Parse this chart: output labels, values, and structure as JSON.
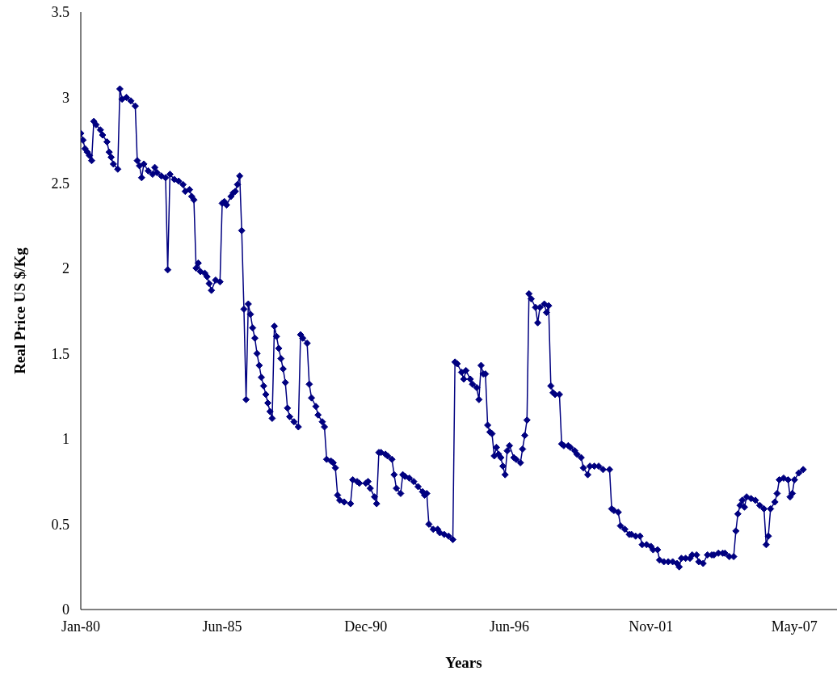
{
  "chart_data": {
    "type": "line",
    "xlabel": "Years",
    "ylabel": "Real Price US $/Kg",
    "grid": false,
    "legend": false,
    "marker": "diamond",
    "line_style": "solid",
    "xlim": [
      "1980-01",
      "2009-05"
    ],
    "xticks": [
      {
        "value": "1980-01",
        "label": "Jan-80"
      },
      {
        "value": "1985-06",
        "label": "Jun-85"
      },
      {
        "value": "1990-12",
        "label": "Dec-90"
      },
      {
        "value": "1996-06",
        "label": "Jun-96"
      },
      {
        "value": "2001-11",
        "label": "Nov-01"
      },
      {
        "value": "2007-05",
        "label": "May-07"
      }
    ],
    "ylim": [
      0,
      3.5
    ],
    "yticks": [
      0,
      0.5,
      1,
      1.5,
      2,
      2.5,
      3,
      3.5
    ],
    "x": [
      "1980-01",
      "1980-02",
      "1980-03",
      "1980-04",
      "1980-05",
      "1980-06",
      "1980-07",
      "1980-08",
      "1980-10",
      "1980-11",
      "1981-01",
      "1981-02",
      "1981-03",
      "1981-04",
      "1981-06",
      "1981-07",
      "1981-08",
      "1981-10",
      "1981-12",
      "1982-02",
      "1982-03",
      "1982-04",
      "1982-05",
      "1982-06",
      "1982-08",
      "1982-10",
      "1982-11",
      "1982-12",
      "1983-02",
      "1983-04",
      "1983-05",
      "1983-06",
      "1983-08",
      "1983-10",
      "1983-12",
      "1984-01",
      "1984-03",
      "1984-04",
      "1984-05",
      "1984-06",
      "1984-07",
      "1984-08",
      "1984-10",
      "1984-11",
      "1984-12",
      "1985-01",
      "1985-03",
      "1985-05",
      "1985-06",
      "1985-07",
      "1985-08",
      "1985-10",
      "1985-11",
      "1985-12",
      "1986-01",
      "1986-02",
      "1986-03",
      "1986-04",
      "1986-05",
      "1986-06",
      "1986-07",
      "1986-08",
      "1986-09",
      "1986-10",
      "1986-11",
      "1986-12",
      "1987-01",
      "1987-02",
      "1987-03",
      "1987-04",
      "1987-05",
      "1987-06",
      "1987-07",
      "1987-08",
      "1987-09",
      "1987-10",
      "1987-11",
      "1987-12",
      "1988-01",
      "1988-03",
      "1988-05",
      "1988-06",
      "1988-07",
      "1988-09",
      "1988-10",
      "1988-11",
      "1989-01",
      "1989-02",
      "1989-04",
      "1989-05",
      "1989-06",
      "1989-08",
      "1989-09",
      "1989-10",
      "1989-11",
      "1989-12",
      "1990-02",
      "1990-05",
      "1990-06",
      "1990-08",
      "1990-09",
      "1990-12",
      "1991-01",
      "1991-02",
      "1991-04",
      "1991-05",
      "1991-06",
      "1991-07",
      "1991-09",
      "1991-10",
      "1991-12",
      "1992-01",
      "1992-02",
      "1992-04",
      "1992-05",
      "1992-06",
      "1992-08",
      "1992-10",
      "1992-12",
      "1993-02",
      "1993-03",
      "1993-04",
      "1993-05",
      "1993-07",
      "1993-09",
      "1993-10",
      "1993-12",
      "1994-02",
      "1994-04",
      "1994-05",
      "1994-06",
      "1994-08",
      "1994-09",
      "1994-10",
      "1994-12",
      "1995-01",
      "1995-03",
      "1995-04",
      "1995-05",
      "1995-06",
      "1995-07",
      "1995-08",
      "1995-09",
      "1995-10",
      "1995-11",
      "1995-12",
      "1996-01",
      "1996-02",
      "1996-03",
      "1996-04",
      "1996-05",
      "1996-06",
      "1996-08",
      "1996-09",
      "1996-11",
      "1996-12",
      "1997-01",
      "1997-02",
      "1997-03",
      "1997-04",
      "1997-06",
      "1997-07",
      "1997-08",
      "1997-10",
      "1997-11",
      "1997-12",
      "1998-01",
      "1998-02",
      "1998-03",
      "1998-05",
      "1998-06",
      "1998-07",
      "1998-09",
      "1998-10",
      "1998-12",
      "1999-01",
      "1999-03",
      "1999-04",
      "1999-06",
      "1999-07",
      "1999-09",
      "1999-11",
      "2000-01",
      "2000-04",
      "2000-05",
      "2000-06",
      "2000-08",
      "2000-09",
      "2000-11",
      "2001-01",
      "2001-02",
      "2001-04",
      "2001-06",
      "2001-07",
      "2001-09",
      "2001-11",
      "2001-12",
      "2002-02",
      "2002-03",
      "2002-05",
      "2002-07",
      "2002-09",
      "2002-11",
      "2002-12",
      "2003-01",
      "2003-03",
      "2003-05",
      "2003-06",
      "2003-08",
      "2003-09",
      "2003-11",
      "2004-01",
      "2004-03",
      "2004-04",
      "2004-06",
      "2004-08",
      "2004-09",
      "2004-11",
      "2005-01",
      "2005-02",
      "2005-03",
      "2005-04",
      "2005-05",
      "2005-06",
      "2005-07",
      "2005-09",
      "2005-11",
      "2006-01",
      "2006-03",
      "2006-04",
      "2006-05",
      "2006-06",
      "2006-08",
      "2006-09",
      "2006-10",
      "2006-12",
      "2007-02",
      "2007-03",
      "2007-04",
      "2007-05",
      "2007-07",
      "2007-09"
    ],
    "series": [
      {
        "color": "#000080",
        "values": [
          2.79,
          2.75,
          2.7,
          2.68,
          2.66,
          2.63,
          2.86,
          2.84,
          2.81,
          2.78,
          2.74,
          2.68,
          2.65,
          2.61,
          2.58,
          3.05,
          2.99,
          3.0,
          2.98,
          2.95,
          2.63,
          2.6,
          2.53,
          2.61,
          2.57,
          2.55,
          2.59,
          2.56,
          2.54,
          2.53,
          1.99,
          2.55,
          2.52,
          2.51,
          2.49,
          2.45,
          2.46,
          2.42,
          2.4,
          2.0,
          2.03,
          1.98,
          1.97,
          1.95,
          1.91,
          1.87,
          1.93,
          1.92,
          2.38,
          2.39,
          2.37,
          2.42,
          2.44,
          2.45,
          2.49,
          2.54,
          2.22,
          1.76,
          1.23,
          1.79,
          1.73,
          1.65,
          1.59,
          1.5,
          1.43,
          1.36,
          1.31,
          1.26,
          1.21,
          1.16,
          1.12,
          1.66,
          1.6,
          1.53,
          1.47,
          1.41,
          1.33,
          1.18,
          1.13,
          1.1,
          1.07,
          1.61,
          1.59,
          1.56,
          1.32,
          1.24,
          1.19,
          1.14,
          1.1,
          1.07,
          0.88,
          0.87,
          0.86,
          0.83,
          0.67,
          0.64,
          0.63,
          0.62,
          0.76,
          0.75,
          0.74,
          0.74,
          0.75,
          0.71,
          0.66,
          0.62,
          0.92,
          0.92,
          0.91,
          0.9,
          0.88,
          0.79,
          0.71,
          0.68,
          0.79,
          0.78,
          0.77,
          0.75,
          0.72,
          0.69,
          0.67,
          0.68,
          0.5,
          0.47,
          0.47,
          0.45,
          0.44,
          0.43,
          0.41,
          1.45,
          1.44,
          1.39,
          1.35,
          1.4,
          1.35,
          1.32,
          1.3,
          1.23,
          1.43,
          1.38,
          1.38,
          1.08,
          1.04,
          1.03,
          0.9,
          0.95,
          0.91,
          0.89,
          0.84,
          0.79,
          0.93,
          0.96,
          0.89,
          0.88,
          0.86,
          0.94,
          1.02,
          1.11,
          1.85,
          1.82,
          1.77,
          1.68,
          1.77,
          1.79,
          1.74,
          1.78,
          1.31,
          1.27,
          1.26,
          1.26,
          0.97,
          0.96,
          0.96,
          0.95,
          0.93,
          0.91,
          0.89,
          0.83,
          0.79,
          0.84,
          0.84,
          0.84,
          0.82,
          0.82,
          0.59,
          0.58,
          0.57,
          0.49,
          0.47,
          0.44,
          0.44,
          0.43,
          0.43,
          0.38,
          0.38,
          0.37,
          0.35,
          0.35,
          0.29,
          0.28,
          0.28,
          0.28,
          0.27,
          0.25,
          0.3,
          0.3,
          0.3,
          0.32,
          0.32,
          0.28,
          0.27,
          0.32,
          0.32,
          0.32,
          0.33,
          0.33,
          0.33,
          0.31,
          0.31,
          0.46,
          0.56,
          0.61,
          0.64,
          0.6,
          0.66,
          0.65,
          0.64,
          0.61,
          0.59,
          0.38,
          0.43,
          0.59,
          0.63,
          0.68,
          0.76,
          0.77,
          0.76,
          0.66,
          0.68,
          0.76,
          0.8,
          0.82
        ]
      }
    ]
  }
}
